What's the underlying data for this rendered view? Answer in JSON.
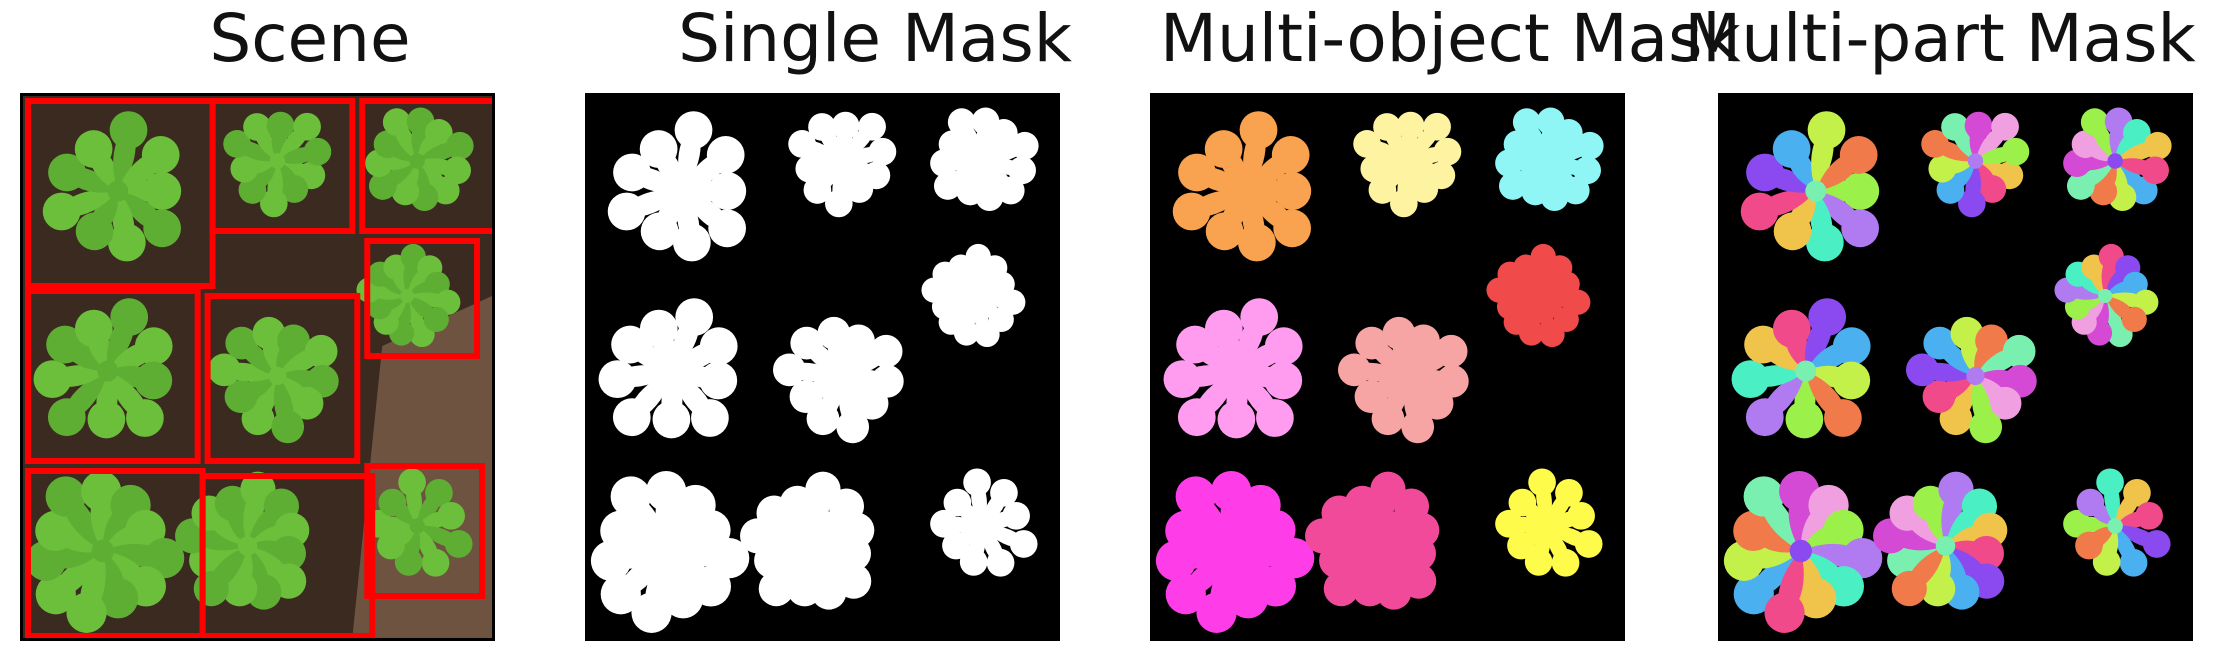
{
  "panels": [
    {
      "id": "scene",
      "title": "Scene"
    },
    {
      "id": "single",
      "title": "Single Mask"
    },
    {
      "id": "multiobject",
      "title": "Multi-object Mask"
    },
    {
      "id": "multipart",
      "title": "Multi-part Mask"
    }
  ],
  "colors": {
    "bbox": "#ff0000",
    "leaf": "#6cbf3a",
    "soil": "#3a2a20",
    "single_mask": "#ffffff",
    "multi_object": [
      "#f9a24f",
      "#fdf3a0",
      "#8ff5f5",
      "#f04a4a",
      "#ff9cf0",
      "#f7a4a4",
      "#ff3de8",
      "#f24a9a",
      "#fefb4a"
    ],
    "multi_part": [
      "#9bf04a",
      "#b07af0",
      "#4af0c4",
      "#f0c44a",
      "#f04a8a",
      "#8a4af0",
      "#4ab0f0",
      "#c4f04a",
      "#f07a4a",
      "#7af0b0",
      "#d44ad4",
      "#f0a0e0"
    ]
  }
}
